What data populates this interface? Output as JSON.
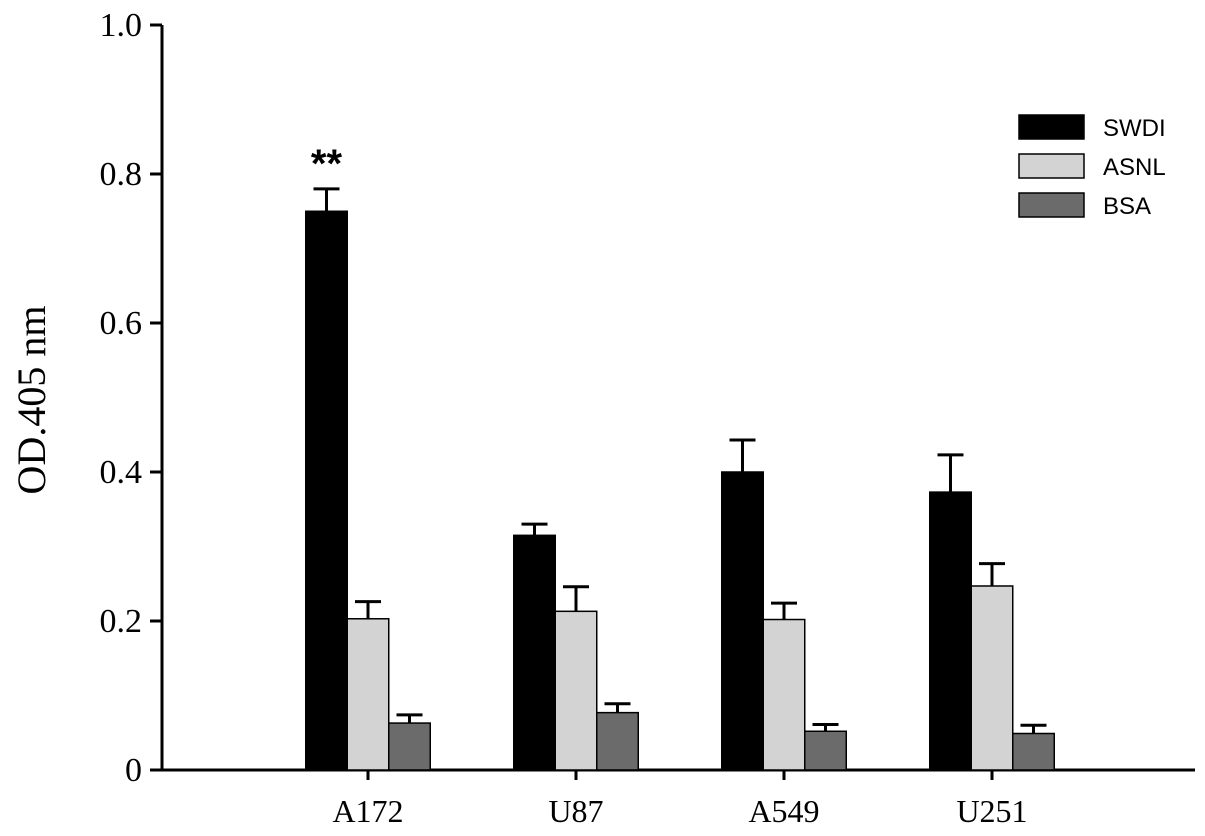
{
  "chart_data": {
    "type": "bar",
    "ylabel": "OD.405 nm",
    "xlabel": "",
    "title": "",
    "ylim": [
      0,
      1.0
    ],
    "yticks": [
      0,
      0.2,
      0.4,
      0.6,
      0.8,
      1.0
    ],
    "ytick_labels": [
      "0",
      "0.2",
      "0.4",
      "0.6",
      "0.8",
      "1.0"
    ],
    "categories": [
      "A172",
      "U87",
      "A549",
      "U251"
    ],
    "series": [
      {
        "name": "SWDI",
        "color": "#000000",
        "values": [
          0.75,
          0.315,
          0.4,
          0.373
        ],
        "errors": [
          0.03,
          0.015,
          0.043,
          0.05
        ]
      },
      {
        "name": "ASNL",
        "color": "#d3d3d3",
        "values": [
          0.203,
          0.213,
          0.202,
          0.247
        ],
        "errors": [
          0.023,
          0.033,
          0.022,
          0.03
        ]
      },
      {
        "name": "BSA",
        "color": "#6b6b6b",
        "values": [
          0.063,
          0.077,
          0.052,
          0.049
        ],
        "errors": [
          0.011,
          0.012,
          0.009,
          0.011
        ]
      }
    ],
    "annotations": [
      {
        "text": "**",
        "category": "A172",
        "series": "SWDI"
      }
    ],
    "legend_position": "top-right",
    "grid": false
  }
}
